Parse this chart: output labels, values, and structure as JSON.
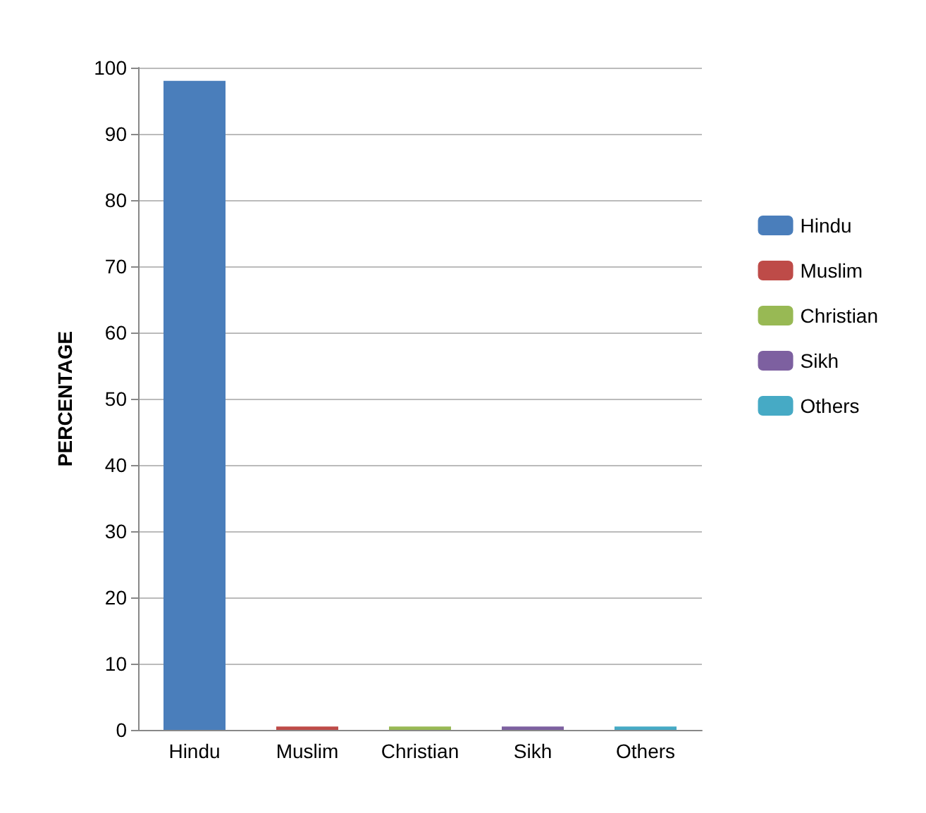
{
  "chart_data": {
    "type": "bar",
    "ylabel": "PERCENTAGE",
    "categories": [
      "Hindu",
      "Muslim",
      "Christian",
      "Sikh",
      "Others"
    ],
    "series": [
      {
        "name": "Hindu",
        "color": "#4a7ebb",
        "values": [
          98,
          null,
          null,
          null,
          null
        ]
      },
      {
        "name": "Muslim",
        "color": "#be4b48",
        "values": [
          null,
          0.5,
          null,
          null,
          null
        ]
      },
      {
        "name": "Christian",
        "color": "#98b954",
        "values": [
          null,
          null,
          0.5,
          null,
          null
        ]
      },
      {
        "name": "Sikh",
        "color": "#7d60a0",
        "values": [
          null,
          null,
          null,
          0.5,
          null
        ]
      },
      {
        "name": "Others",
        "color": "#46aac5",
        "values": [
          null,
          null,
          null,
          null,
          0.5
        ]
      }
    ],
    "stacked": true,
    "ylim": [
      0,
      100
    ],
    "yticks": [
      0,
      10,
      20,
      30,
      40,
      50,
      60,
      70,
      80,
      90,
      100
    ],
    "grid": "y",
    "legend": "right"
  }
}
